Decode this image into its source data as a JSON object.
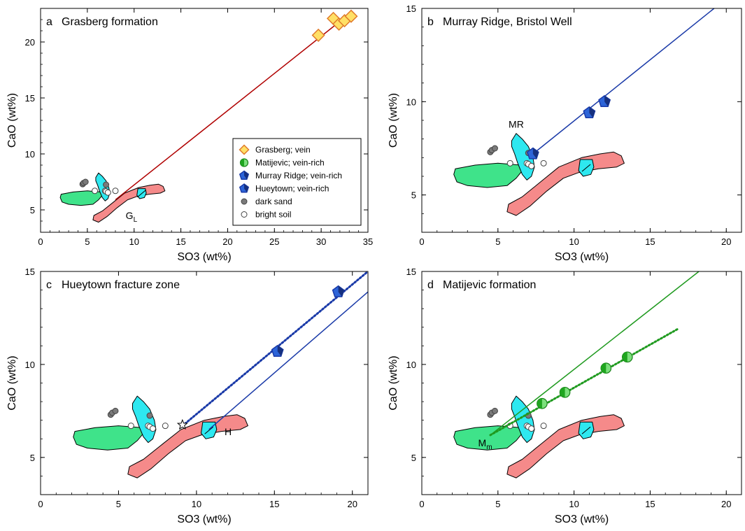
{
  "figure": {
    "legend": [
      {
        "key": "grasberg",
        "label": "Grasberg; vein"
      },
      {
        "key": "matijevic",
        "label": "Matijevic; vein-rich"
      },
      {
        "key": "murray",
        "label": "Murray Ridge; vein-rich"
      },
      {
        "key": "hueytown",
        "label": "Hueytown; vein-rich"
      },
      {
        "key": "dark",
        "label": "dark sand"
      },
      {
        "key": "bright",
        "label": "bright soil"
      }
    ]
  },
  "chart_data": [
    {
      "type": "scatter",
      "panel_letter": "a",
      "title": "Grasberg formation",
      "xlabel": "SO3 (wt%)",
      "ylabel": "CaO (wt%)",
      "xlim": [
        0,
        35
      ],
      "ylim": [
        3,
        23
      ],
      "xticks": [
        0,
        5,
        10,
        15,
        20,
        25,
        30,
        35
      ],
      "yticks": [
        5,
        10,
        15,
        20
      ],
      "legend_position": "bottom-right",
      "annotations": [
        {
          "text": "G",
          "sub": "L",
          "x": 9.1,
          "y": 4.2
        }
      ],
      "fit_lines": [
        {
          "style": "solid",
          "color": "#b00000",
          "x": [
            8.0,
            33.0
          ],
          "y": [
            5.9,
            22.5
          ]
        }
      ],
      "series": [
        {
          "name": "Grasberg; vein",
          "marker": "diamond",
          "points": [
            [
              29.7,
              20.6
            ],
            [
              31.3,
              22.1
            ],
            [
              31.9,
              21.6
            ],
            [
              32.5,
              21.9
            ],
            [
              33.2,
              22.3
            ]
          ]
        }
      ]
    },
    {
      "type": "scatter",
      "panel_letter": "b",
      "title": "Murray Ridge, Bristol Well",
      "xlabel": "SO3 (wt%)",
      "ylabel": "CaO (wt%)",
      "xlim": [
        0,
        21
      ],
      "ylim": [
        3,
        15
      ],
      "xticks": [
        0,
        5,
        10,
        15,
        20
      ],
      "yticks": [
        5,
        10,
        15
      ],
      "annotations": [
        {
          "text": "MR",
          "sub": "",
          "x": 5.7,
          "y": 8.6
        }
      ],
      "fit_lines": [
        {
          "style": "solid",
          "color": "#1a3aa8",
          "x": [
            7.3,
            19.2
          ],
          "y": [
            7.2,
            15.0
          ]
        }
      ],
      "series": [
        {
          "name": "Murray Ridge; vein-rich",
          "marker": "pentagon",
          "points": [
            [
              7.3,
              7.2
            ],
            [
              11.0,
              9.4
            ],
            [
              12.0,
              10.0
            ]
          ]
        }
      ]
    },
    {
      "type": "scatter",
      "panel_letter": "c",
      "title": "Hueytown fracture zone",
      "xlabel": "SO3 (wt%)",
      "ylabel": "CaO (wt%)",
      "xlim": [
        0,
        21
      ],
      "ylim": [
        3,
        15
      ],
      "xticks": [
        0,
        5,
        10,
        15,
        20
      ],
      "yticks": [
        5,
        10,
        15
      ],
      "annotations": [
        {
          "text": "H",
          "sub": "",
          "x": 11.8,
          "y": 6.2
        }
      ],
      "fit_lines": [
        {
          "style": "solid",
          "color": "#1a3aa8",
          "x": [
            10.8,
            21.0
          ],
          "y": [
            6.5,
            13.9
          ]
        },
        {
          "style": "dotted",
          "color": "#1a3aa8",
          "x": [
            9.1,
            21.0
          ],
          "y": [
            6.7,
            15.0
          ]
        }
      ],
      "star": [
        9.1,
        6.75
      ],
      "series": [
        {
          "name": "Hueytown; vein-rich",
          "marker": "pentagon",
          "points": [
            [
              15.2,
              10.7
            ],
            [
              19.1,
              13.9
            ]
          ]
        }
      ]
    },
    {
      "type": "scatter",
      "panel_letter": "d",
      "title": "Matijevic formation",
      "xlabel": "SO3 (wt%)",
      "ylabel": "CaO (wt%)",
      "xlim": [
        0,
        21
      ],
      "ylim": [
        3,
        15
      ],
      "xticks": [
        0,
        5,
        10,
        15,
        20
      ],
      "yticks": [
        5,
        10,
        15
      ],
      "annotations": [
        {
          "text": "M",
          "sub": "m",
          "x": 3.7,
          "y": 5.6
        }
      ],
      "fit_lines": [
        {
          "style": "solid",
          "color": "#1f9a1f",
          "x": [
            4.5,
            18.2
          ],
          "y": [
            6.2,
            15.0
          ]
        },
        {
          "style": "dotted",
          "color": "#1f9a1f",
          "x": [
            4.5,
            16.8
          ],
          "y": [
            6.2,
            11.9
          ]
        }
      ],
      "series": [
        {
          "name": "Matijevic; vein-rich",
          "marker": "halfcircle",
          "points": [
            [
              7.9,
              7.9
            ],
            [
              9.4,
              8.5
            ],
            [
              12.1,
              9.8
            ],
            [
              13.5,
              10.4
            ]
          ]
        }
      ]
    }
  ]
}
